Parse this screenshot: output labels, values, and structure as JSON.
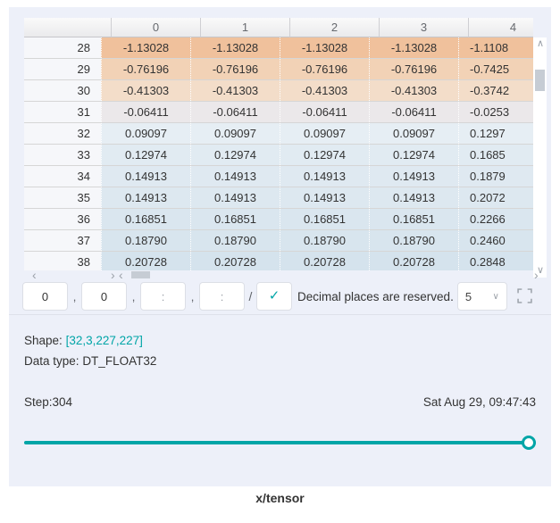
{
  "accent_color": "#00a5a7",
  "title": "x/tensor",
  "table": {
    "col_headers": [
      "",
      "0",
      "1",
      "2",
      "3",
      "4"
    ],
    "rows": [
      {
        "index": "28",
        "values": [
          "-1.13028",
          "-1.13028",
          "-1.13028",
          "-1.13028"
        ],
        "last": "-1.1108",
        "color": "#f0c19c"
      },
      {
        "index": "29",
        "values": [
          "-0.76196",
          "-0.76196",
          "-0.76196",
          "-0.76196"
        ],
        "last": "-0.7425",
        "color": "#f2d2b6"
      },
      {
        "index": "30",
        "values": [
          "-0.41303",
          "-0.41303",
          "-0.41303",
          "-0.41303"
        ],
        "last": "-0.3742",
        "color": "#f3ddc9"
      },
      {
        "index": "31",
        "values": [
          "-0.06411",
          "-0.06411",
          "-0.06411",
          "-0.06411"
        ],
        "last": "-0.0253",
        "color": "#ebe8ea"
      },
      {
        "index": "32",
        "values": [
          "0.09097",
          "0.09097",
          "0.09097",
          "0.09097"
        ],
        "last": "0.1297",
        "color": "#e6eef4"
      },
      {
        "index": "33",
        "values": [
          "0.12974",
          "0.12974",
          "0.12974",
          "0.12974"
        ],
        "last": "0.1685",
        "color": "#e1ebf2"
      },
      {
        "index": "34",
        "values": [
          "0.14913",
          "0.14913",
          "0.14913",
          "0.14913"
        ],
        "last": "0.1879",
        "color": "#dfe9f1"
      },
      {
        "index": "35",
        "values": [
          "0.14913",
          "0.14913",
          "0.14913",
          "0.14913"
        ],
        "last": "0.2072",
        "color": "#dde8f0"
      },
      {
        "index": "36",
        "values": [
          "0.16851",
          "0.16851",
          "0.16851",
          "0.16851"
        ],
        "last": "0.2266",
        "color": "#dae6ef"
      },
      {
        "index": "37",
        "values": [
          "0.18790",
          "0.18790",
          "0.18790",
          "0.18790"
        ],
        "last": "0.2460",
        "color": "#d8e5ee"
      },
      {
        "index": "38",
        "values": [
          "0.20728",
          "0.20728",
          "0.20728",
          "0.20728"
        ],
        "last": "0.2848",
        "color": "#d5e3ed"
      }
    ]
  },
  "controls": {
    "dim_inputs": [
      {
        "value": "0",
        "placeholder": ""
      },
      {
        "value": "0",
        "placeholder": ""
      },
      {
        "value": "",
        "placeholder": ":"
      },
      {
        "value": "",
        "placeholder": ":"
      }
    ],
    "separator": ",",
    "slash": "/",
    "decimal_label": "Decimal places are reserved.",
    "decimal_value": "5"
  },
  "info": {
    "shape_label": "Shape:",
    "shape_value": "[32,3,227,227]",
    "dtype_label": "Data type:",
    "dtype_value": "DT_FLOAT32"
  },
  "footer": {
    "step": "Step:304",
    "timestamp": "Sat Aug 29, 09:47:43"
  },
  "icons": {
    "check": "✓",
    "dropdown_arrow": "∨",
    "scroll_up": "∧",
    "scroll_down": "∨",
    "scroll_left": "‹",
    "scroll_right": "›"
  }
}
